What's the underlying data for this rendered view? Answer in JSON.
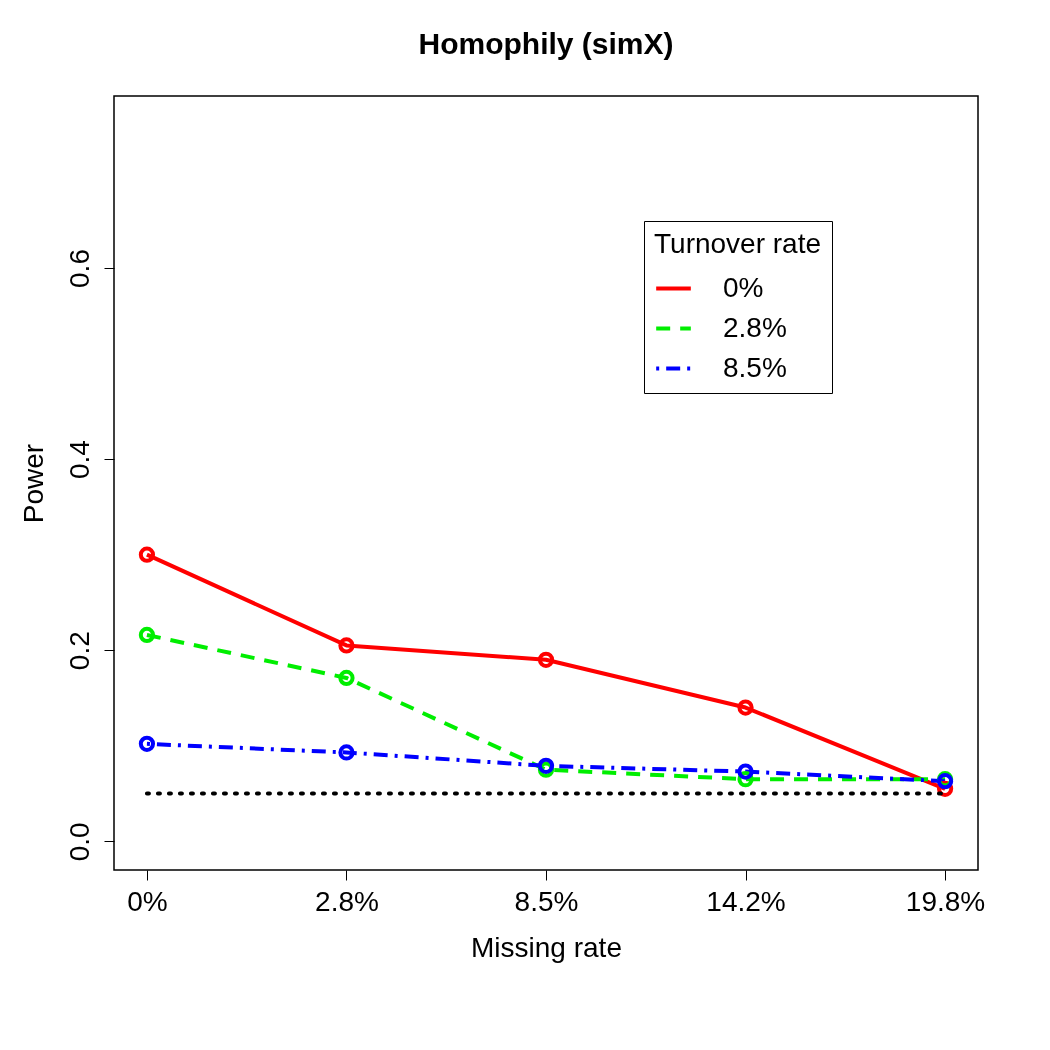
{
  "chart_data": {
    "type": "line",
    "title": "Homophily (simX)",
    "xlabel": "Missing rate",
    "ylabel": "Power",
    "legend_title": "Turnover rate",
    "categories": [
      "0%",
      "2.8%",
      "8.5%",
      "14.2%",
      "19.8%"
    ],
    "series": [
      {
        "name": "0%",
        "color": "#ff0000",
        "line_style": "solid",
        "values": [
          0.3,
          0.205,
          0.19,
          0.14,
          0.055
        ]
      },
      {
        "name": "2.8%",
        "color": "#00ee00",
        "line_style": "dashed",
        "values": [
          0.216,
          0.171,
          0.075,
          0.065,
          0.065
        ]
      },
      {
        "name": "8.5%",
        "color": "#0000ff",
        "line_style": "dashdot",
        "values": [
          0.102,
          0.093,
          0.079,
          0.073,
          0.063
        ]
      }
    ],
    "ylim": [
      -0.03,
      0.78
    ],
    "yticks": [
      {
        "value": 0,
        "label": "0.0"
      },
      0.2,
      0.4,
      0.6
    ],
    "ref_lines": [
      {
        "axis": "y",
        "value": 0.05,
        "color": "#000000",
        "line_style": "dotted"
      }
    ],
    "marker": "circle",
    "grid": false,
    "legend": "top right"
  }
}
